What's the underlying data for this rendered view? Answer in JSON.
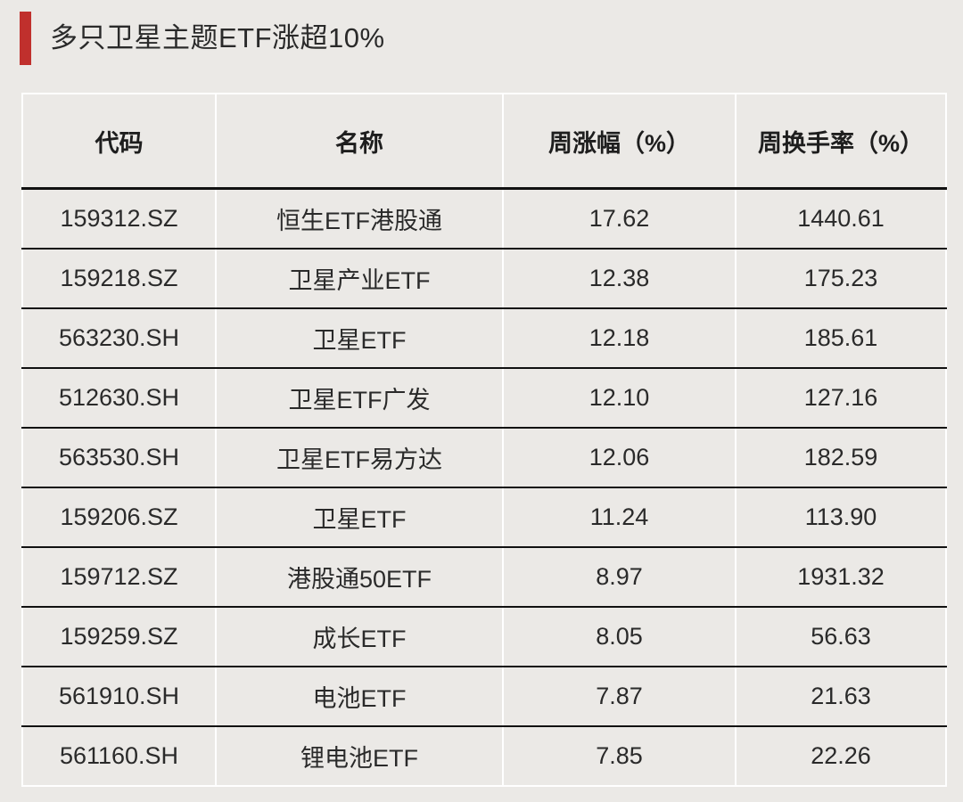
{
  "title": "多只卫星主题ETF涨超10%",
  "accent_color": "#c0302d",
  "table": {
    "headers": [
      "代码",
      "名称",
      "周涨幅（%）",
      "周换手率（%）"
    ],
    "rows": [
      [
        "159312.SZ",
        "恒生ETF港股通",
        "17.62",
        "1440.61"
      ],
      [
        "159218.SZ",
        "卫星产业ETF",
        "12.38",
        "175.23"
      ],
      [
        "563230.SH",
        "卫星ETF",
        "12.18",
        "185.61"
      ],
      [
        "512630.SH",
        "卫星ETF广发",
        "12.10",
        "127.16"
      ],
      [
        "563530.SH",
        "卫星ETF易方达",
        "12.06",
        "182.59"
      ],
      [
        "159206.SZ",
        "卫星ETF",
        "11.24",
        "113.90"
      ],
      [
        "159712.SZ",
        "港股通50ETF",
        "8.97",
        "1931.32"
      ],
      [
        "159259.SZ",
        "成长ETF",
        "8.05",
        "56.63"
      ],
      [
        "561910.SH",
        "电池ETF",
        "7.87",
        "21.63"
      ],
      [
        "561160.SH",
        "锂电池ETF",
        "7.85",
        "22.26"
      ]
    ]
  }
}
